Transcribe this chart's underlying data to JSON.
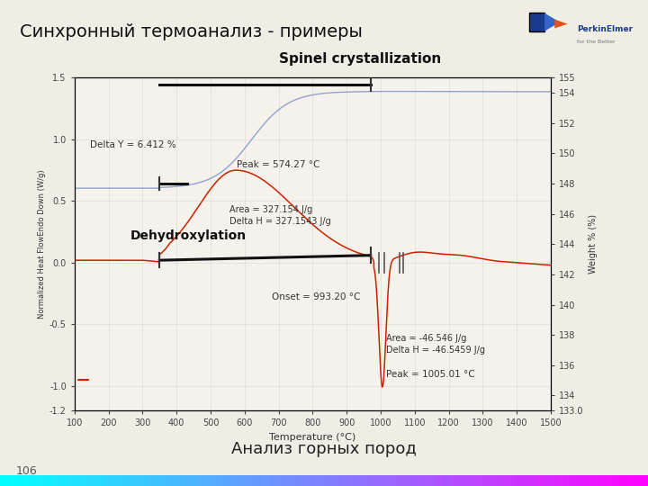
{
  "title_main": "Синхронный термоанализ - примеры",
  "subtitle": "Анализ горных пород",
  "page_number": "106",
  "chart_title": "Spinel crystallization",
  "xlabel": "Temperature (°C)",
  "ylabel_left": "Normalized Heat FlowEndo Down (W/g)",
  "ylabel_right": "Weight % (%)",
  "xlim": [
    100,
    1500
  ],
  "ylim_left": [
    -1.2,
    1.5
  ],
  "ylim_right": [
    133.0,
    155.0
  ],
  "bg_color": "#f0ede5",
  "plot_bg_color": "#f5f2ec",
  "header_bg": "#f0ede5",
  "sep_color": "#a0a0c0",
  "dsc_color": "#cc2200",
  "tga_color": "#8899cc",
  "baseline_color": "#111111",
  "anno_color": "#333333",
  "title_fontsize": 14,
  "chart_title_fontsize": 11,
  "anno_fontsize": 7.5,
  "axis_label_fontsize": 7,
  "tick_fontsize": 7
}
